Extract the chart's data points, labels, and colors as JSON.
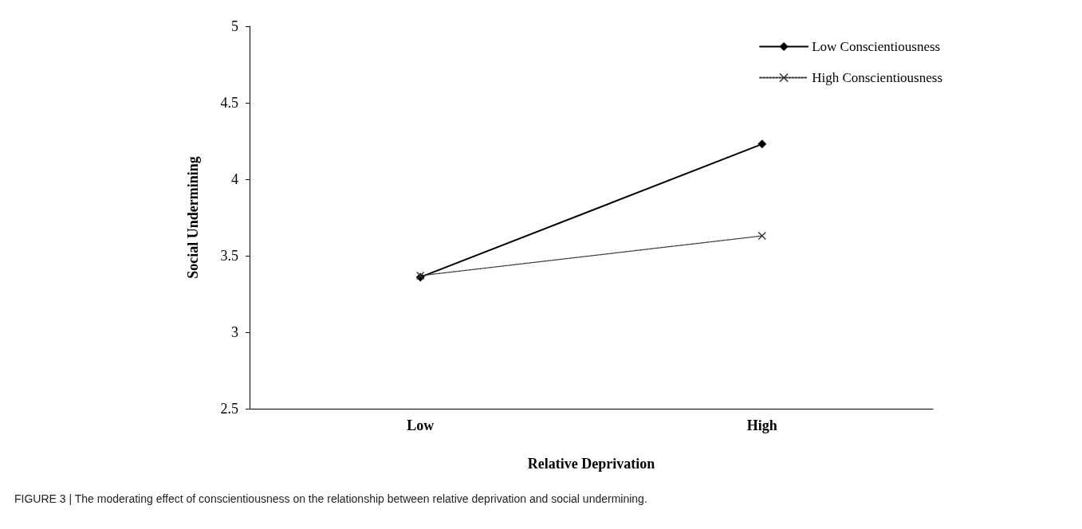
{
  "chart_data": {
    "type": "line",
    "xlabel": "Relative Deprivation",
    "ylabel": "Social Undermining",
    "categories": [
      "Low",
      "High"
    ],
    "series": [
      {
        "name": "Low Conscientiousness",
        "color": "#000000",
        "values": [
          3.36,
          4.23
        ],
        "marker": "diamond",
        "line_style": "solid"
      },
      {
        "name": "High Conscientiousness",
        "color": "#333333",
        "values": [
          3.37,
          3.63
        ],
        "marker": "cross",
        "line_style": "dotted"
      }
    ],
    "ylim": [
      2.5,
      5
    ],
    "yticks": [
      2.5,
      3,
      3.5,
      4,
      4.5,
      5
    ],
    "grid": false,
    "legend": "top right",
    "annotations": [
      "FIGURE 3 | The moderating effect of conscientiousness on the relationship between relative deprivation and social undermining."
    ]
  }
}
